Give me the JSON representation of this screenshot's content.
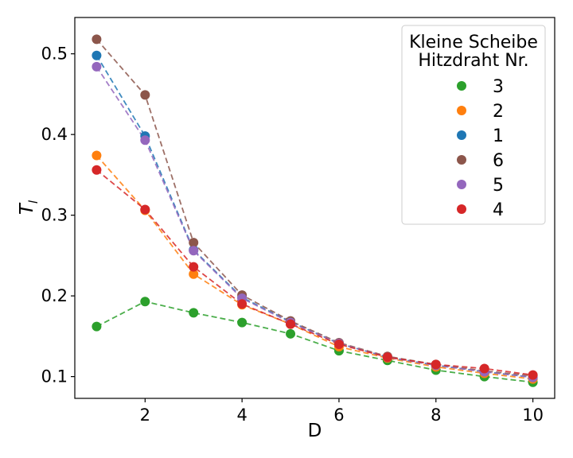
{
  "chart_data": {
    "type": "line",
    "xlabel": "D",
    "ylabel": "T_l",
    "xlim": [
      0.55,
      10.45
    ],
    "ylim": [
      0.073,
      0.545
    ],
    "xticks": [
      2,
      4,
      6,
      8,
      10
    ],
    "yticks": [
      0.1,
      0.2,
      0.3,
      0.4,
      0.5
    ],
    "x": [
      1,
      2,
      3,
      4,
      5,
      6,
      7,
      8,
      9,
      10
    ],
    "grid": false,
    "line_style": "dashed",
    "legend": {
      "title_line1": "Kleine Scheibe",
      "title_line2": "Hitzdraht Nr.",
      "placement": "top-right"
    },
    "series": [
      {
        "name": "3",
        "color": "#2ca02c",
        "values": [
          0.162,
          0.193,
          0.179,
          0.167,
          0.153,
          0.132,
          0.12,
          0.108,
          0.1,
          0.093
        ]
      },
      {
        "name": "2",
        "color": "#ff7f0e",
        "values": [
          0.374,
          0.306,
          0.227,
          0.189,
          0.165,
          0.137,
          0.123,
          0.112,
          0.104,
          0.097
        ]
      },
      {
        "name": "1",
        "color": "#1f77b4",
        "values": [
          0.498,
          0.398,
          0.257,
          0.198,
          0.168,
          0.141,
          0.124,
          0.114,
          0.106,
          0.099
        ]
      },
      {
        "name": "6",
        "color": "#8c564b",
        "values": [
          0.518,
          0.449,
          0.266,
          0.201,
          0.169,
          0.142,
          0.125,
          0.115,
          0.107,
          0.101
        ]
      },
      {
        "name": "5",
        "color": "#9467bd",
        "values": [
          0.484,
          0.393,
          0.256,
          0.197,
          0.167,
          0.141,
          0.124,
          0.114,
          0.106,
          0.099
        ]
      },
      {
        "name": "4",
        "color": "#d62728",
        "values": [
          0.356,
          0.307,
          0.236,
          0.19,
          0.165,
          0.14,
          0.124,
          0.115,
          0.11,
          0.102
        ]
      }
    ]
  }
}
